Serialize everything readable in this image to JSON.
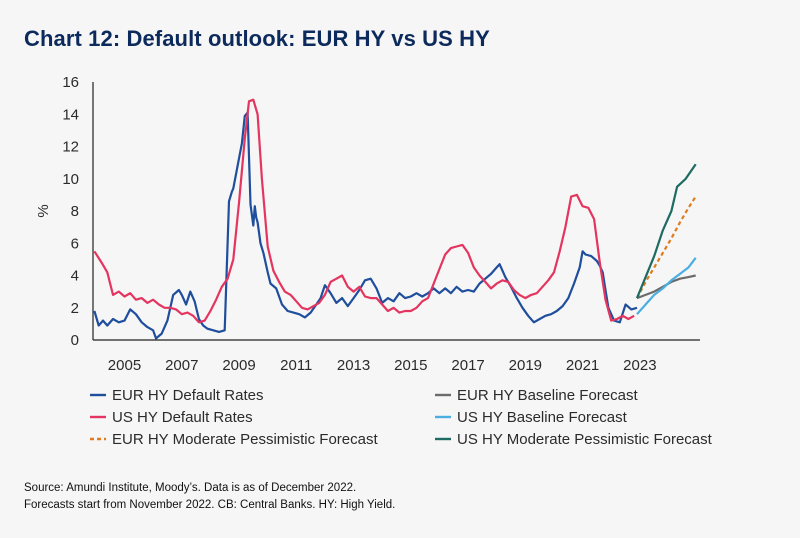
{
  "title": "Chart 12: Default outlook: EUR HY vs US HY",
  "source_lines": [
    "Source: Amundi Institute, Moody’s. Data is as of December 2022.",
    "Forecasts start from November 2022. CB: Central Banks. HY: High Yield."
  ],
  "chart_data": {
    "type": "line",
    "ylabel": "%",
    "ylim": [
      0,
      16
    ],
    "yticks": [
      0,
      2,
      4,
      6,
      8,
      10,
      12,
      14,
      16
    ],
    "xlim": [
      2003.9,
      2025.1
    ],
    "xticks": [
      2005,
      2007,
      2009,
      2011,
      2013,
      2015,
      2017,
      2019,
      2021,
      2023
    ],
    "grid": false,
    "legend_position": "bottom",
    "series": [
      {
        "name": "EUR HY Default Rates",
        "color": "#1f4e9c",
        "dash": false,
        "x": [
          2003.95,
          2004.1,
          2004.25,
          2004.4,
          2004.6,
          2004.8,
          2005.0,
          2005.2,
          2005.4,
          2005.6,
          2005.8,
          2006.0,
          2006.1,
          2006.3,
          2006.5,
          2006.7,
          2006.9,
          2007.0,
          2007.15,
          2007.3,
          2007.45,
          2007.6,
          2007.75,
          2007.9,
          2008.1,
          2008.3,
          2008.5,
          2008.65,
          2008.75,
          2008.8,
          2008.95,
          2009.1,
          2009.2,
          2009.3,
          2009.4,
          2009.5,
          2009.55,
          2009.6,
          2009.65,
          2009.75,
          2009.85,
          2010.0,
          2010.1,
          2010.3,
          2010.5,
          2010.7,
          2010.9,
          2011.1,
          2011.3,
          2011.5,
          2011.7,
          2011.85,
          2012.0,
          2012.2,
          2012.4,
          2012.6,
          2012.8,
          2013.0,
          2013.2,
          2013.4,
          2013.6,
          2013.8,
          2014.0,
          2014.2,
          2014.4,
          2014.6,
          2014.8,
          2015.0,
          2015.2,
          2015.4,
          2015.6,
          2015.8,
          2016.0,
          2016.2,
          2016.4,
          2016.6,
          2016.8,
          2017.0,
          2017.2,
          2017.4,
          2017.6,
          2017.8,
          2018.0,
          2018.1,
          2018.3,
          2018.5,
          2018.7,
          2018.9,
          2019.1,
          2019.3,
          2019.5,
          2019.7,
          2019.9,
          2020.1,
          2020.3,
          2020.5,
          2020.7,
          2020.9,
          2021.0,
          2021.1,
          2021.3,
          2021.5,
          2021.6,
          2021.7,
          2021.8,
          2021.9,
          2022.1,
          2022.3,
          2022.5,
          2022.7,
          2022.9
        ],
        "y": [
          1.8,
          0.9,
          1.2,
          0.9,
          1.3,
          1.1,
          1.2,
          1.9,
          1.6,
          1.1,
          0.8,
          0.6,
          0.1,
          0.4,
          1.2,
          2.8,
          3.1,
          2.8,
          2.2,
          3.0,
          2.4,
          1.3,
          0.9,
          0.7,
          0.6,
          0.5,
          0.6,
          8.6,
          9.2,
          9.4,
          10.8,
          12.2,
          13.9,
          14.1,
          8.4,
          7.1,
          8.3,
          7.6,
          7.3,
          6.0,
          5.4,
          4.2,
          3.5,
          3.2,
          2.2,
          1.8,
          1.7,
          1.6,
          1.4,
          1.7,
          2.2,
          2.6,
          3.4,
          2.9,
          2.3,
          2.6,
          2.1,
          2.6,
          3.1,
          3.7,
          3.8,
          3.2,
          2.3,
          2.6,
          2.4,
          2.9,
          2.6,
          2.7,
          2.9,
          2.7,
          2.9,
          3.2,
          2.9,
          3.2,
          2.9,
          3.3,
          3.0,
          3.1,
          3.0,
          3.5,
          3.8,
          4.1,
          4.5,
          4.7,
          3.9,
          3.3,
          2.6,
          2.0,
          1.5,
          1.1,
          1.3,
          1.5,
          1.6,
          1.8,
          2.1,
          2.6,
          3.5,
          4.5,
          5.5,
          5.3,
          5.2,
          4.9,
          4.6,
          4.2,
          3.1,
          2.0,
          1.2,
          1.1,
          2.2,
          1.9,
          2.0
        ]
      },
      {
        "name": "US HY Default Rates",
        "color": "#e3355f",
        "dash": false,
        "x": [
          2003.95,
          2004.2,
          2004.4,
          2004.6,
          2004.8,
          2005.0,
          2005.2,
          2005.4,
          2005.6,
          2005.8,
          2006.0,
          2006.2,
          2006.4,
          2006.6,
          2006.8,
          2007.0,
          2007.2,
          2007.4,
          2007.6,
          2007.8,
          2008.0,
          2008.2,
          2008.4,
          2008.6,
          2008.8,
          2009.0,
          2009.2,
          2009.35,
          2009.5,
          2009.65,
          2009.8,
          2010.0,
          2010.2,
          2010.4,
          2010.6,
          2010.8,
          2011.0,
          2011.2,
          2011.4,
          2011.6,
          2011.8,
          2012.0,
          2012.2,
          2012.4,
          2012.6,
          2012.8,
          2013.0,
          2013.2,
          2013.4,
          2013.6,
          2013.8,
          2014.0,
          2014.2,
          2014.4,
          2014.6,
          2014.8,
          2015.0,
          2015.2,
          2015.4,
          2015.6,
          2015.8,
          2016.0,
          2016.2,
          2016.4,
          2016.6,
          2016.8,
          2017.0,
          2017.2,
          2017.4,
          2017.6,
          2017.8,
          2018.0,
          2018.2,
          2018.4,
          2018.6,
          2018.8,
          2019.0,
          2019.2,
          2019.4,
          2019.6,
          2019.8,
          2020.0,
          2020.2,
          2020.4,
          2020.6,
          2020.8,
          2021.0,
          2021.2,
          2021.4,
          2021.6,
          2021.8,
          2022.0,
          2022.2,
          2022.4,
          2022.6,
          2022.8
        ],
        "y": [
          5.5,
          4.8,
          4.2,
          2.8,
          3.0,
          2.7,
          2.9,
          2.5,
          2.6,
          2.3,
          2.5,
          2.2,
          2.0,
          2.0,
          1.9,
          1.6,
          1.7,
          1.5,
          1.1,
          1.2,
          1.8,
          2.5,
          3.3,
          3.8,
          5.0,
          8.5,
          12.5,
          14.8,
          14.9,
          14.0,
          10.0,
          5.8,
          4.3,
          3.6,
          3.0,
          2.8,
          2.4,
          2.0,
          1.9,
          2.1,
          2.3,
          2.8,
          3.6,
          3.8,
          4.0,
          3.3,
          3.0,
          3.3,
          2.7,
          2.6,
          2.6,
          2.2,
          1.8,
          2.0,
          1.7,
          1.8,
          1.8,
          2.0,
          2.4,
          2.6,
          3.5,
          4.4,
          5.3,
          5.7,
          5.8,
          5.9,
          5.4,
          4.5,
          4.0,
          3.6,
          3.2,
          3.5,
          3.7,
          3.6,
          3.1,
          2.8,
          2.6,
          2.8,
          2.9,
          3.3,
          3.7,
          4.2,
          5.5,
          7.0,
          8.9,
          9.0,
          8.3,
          8.2,
          7.5,
          4.8,
          2.5,
          1.2,
          1.3,
          1.5,
          1.3,
          1.5
        ]
      },
      {
        "name": "EUR HY Moderate Pessimistic Forecast",
        "color": "#e07c1f",
        "dash": true,
        "x": [
          2022.9,
          2023.2,
          2023.5,
          2023.8,
          2024.1,
          2024.4,
          2024.7,
          2024.95
        ],
        "y": [
          2.6,
          3.6,
          4.5,
          5.4,
          6.3,
          7.3,
          8.2,
          8.9
        ]
      },
      {
        "name": "EUR HY Baseline Forecast",
        "color": "#6b6b6b",
        "dash": false,
        "x": [
          2022.9,
          2023.2,
          2023.5,
          2023.8,
          2024.1,
          2024.4,
          2024.7,
          2024.95
        ],
        "y": [
          2.6,
          2.8,
          3.0,
          3.3,
          3.6,
          3.8,
          3.9,
          4.0
        ]
      },
      {
        "name": "US HY Baseline Forecast",
        "color": "#4aaee0",
        "dash": false,
        "x": [
          2022.9,
          2023.2,
          2023.5,
          2023.8,
          2024.1,
          2024.4,
          2024.7,
          2024.95
        ],
        "y": [
          1.6,
          2.2,
          2.8,
          3.2,
          3.7,
          4.1,
          4.5,
          5.1
        ]
      },
      {
        "name": "US HY Moderate Pessimistic Forecast",
        "color": "#1d6b62",
        "dash": false,
        "x": [
          2022.9,
          2023.2,
          2023.5,
          2023.8,
          2024.1,
          2024.3,
          2024.6,
          2024.95
        ],
        "y": [
          2.6,
          3.9,
          5.2,
          6.8,
          8.0,
          9.5,
          10.0,
          10.9
        ]
      }
    ],
    "legend": [
      "EUR HY Default Rates",
      "US HY Default Rates",
      "EUR HY Moderate Pessimistic Forecast",
      "EUR HY Baseline Forecast",
      "US HY Baseline Forecast",
      "US HY Moderate Pessimistic Forecast"
    ]
  }
}
